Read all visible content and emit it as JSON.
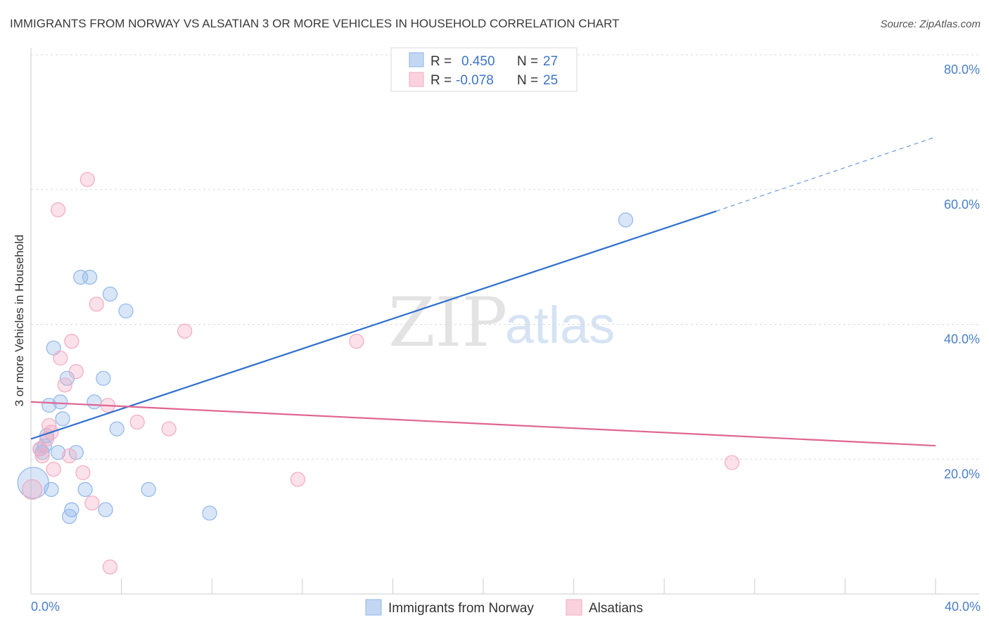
{
  "chart_data": {
    "type": "scatter",
    "title": "IMMIGRANTS FROM NORWAY VS ALSATIAN 3 OR MORE VEHICLES IN HOUSEHOLD CORRELATION CHART",
    "source": "Source: ZipAtlas.com",
    "xlabel": "",
    "ylabel": "3 or more Vehicles in Household",
    "xlim": [
      0,
      40
    ],
    "ylim": [
      0,
      80
    ],
    "x_tick_labels": [
      "0.0%",
      "40.0%"
    ],
    "y_ticks": [
      20,
      40,
      60,
      80
    ],
    "y_tick_labels": [
      "20.0%",
      "40.0%",
      "60.0%",
      "80.0%"
    ],
    "watermark": {
      "zip": "ZIP",
      "atlas": "atlas"
    },
    "legend": [
      {
        "r_label": "R =",
        "r_value": "0.450",
        "n_label": "N =",
        "n_value": "27"
      },
      {
        "r_label": "R =",
        "r_value": "-0.078",
        "n_label": "N =",
        "n_value": "25"
      }
    ],
    "series": [
      {
        "name": "Immigrants from Norway",
        "color": "#8fb6ea",
        "line_color": "#2e6fcc",
        "trend": {
          "x0": 0,
          "y0": 23.0,
          "x1": 30.3,
          "y1": 56.8,
          "dash_to_x": 40,
          "dash_to_y": 67.8
        },
        "points": [
          [
            0.1,
            16.5,
            22
          ],
          [
            0.5,
            21.0,
            10
          ],
          [
            0.6,
            22.0,
            10
          ],
          [
            0.7,
            23.5,
            10
          ],
          [
            0.8,
            28.0,
            10
          ],
          [
            0.9,
            15.5,
            10
          ],
          [
            1.0,
            36.5,
            10
          ],
          [
            1.3,
            28.5,
            10
          ],
          [
            1.4,
            26.0,
            10
          ],
          [
            1.6,
            32.0,
            10
          ],
          [
            1.7,
            11.5,
            10
          ],
          [
            1.8,
            12.5,
            10
          ],
          [
            2.0,
            21.0,
            10
          ],
          [
            2.2,
            47.0,
            10
          ],
          [
            2.4,
            15.5,
            10
          ],
          [
            2.6,
            47.0,
            10
          ],
          [
            2.8,
            28.5,
            10
          ],
          [
            3.2,
            32.0,
            10
          ],
          [
            3.3,
            12.5,
            10
          ],
          [
            3.5,
            44.5,
            10
          ],
          [
            3.8,
            24.5,
            10
          ],
          [
            4.2,
            42.0,
            10
          ],
          [
            5.2,
            15.5,
            10
          ],
          [
            7.9,
            12.0,
            10
          ],
          [
            26.3,
            55.5,
            10
          ],
          [
            1.2,
            21.0,
            10
          ],
          [
            0.4,
            21.5,
            10
          ]
        ]
      },
      {
        "name": "Alsatians",
        "color": "#f4a9c0",
        "line_color": "#e06592",
        "trend": {
          "x0": 0,
          "y0": 28.5,
          "x1": 40,
          "y1": 22.0
        },
        "points": [
          [
            0.05,
            15.5,
            14
          ],
          [
            0.4,
            21.5,
            10
          ],
          [
            0.5,
            20.5,
            10
          ],
          [
            0.7,
            23.0,
            10
          ],
          [
            0.8,
            25.0,
            10
          ],
          [
            0.9,
            24.0,
            10
          ],
          [
            1.0,
            18.5,
            10
          ],
          [
            1.2,
            57.0,
            10
          ],
          [
            1.3,
            35.0,
            10
          ],
          [
            1.5,
            31.0,
            10
          ],
          [
            1.7,
            20.5,
            10
          ],
          [
            1.8,
            37.5,
            10
          ],
          [
            2.0,
            33.0,
            10
          ],
          [
            2.3,
            18.0,
            10
          ],
          [
            2.5,
            61.5,
            10
          ],
          [
            2.7,
            13.5,
            10
          ],
          [
            2.9,
            43.0,
            10
          ],
          [
            3.4,
            28.0,
            10
          ],
          [
            3.5,
            4.0,
            10
          ],
          [
            4.7,
            25.5,
            10
          ],
          [
            6.1,
            24.5,
            10
          ],
          [
            6.8,
            39.0,
            10
          ],
          [
            11.8,
            17.0,
            10
          ],
          [
            14.4,
            37.5,
            10
          ],
          [
            31.0,
            19.5,
            10
          ]
        ]
      }
    ]
  }
}
